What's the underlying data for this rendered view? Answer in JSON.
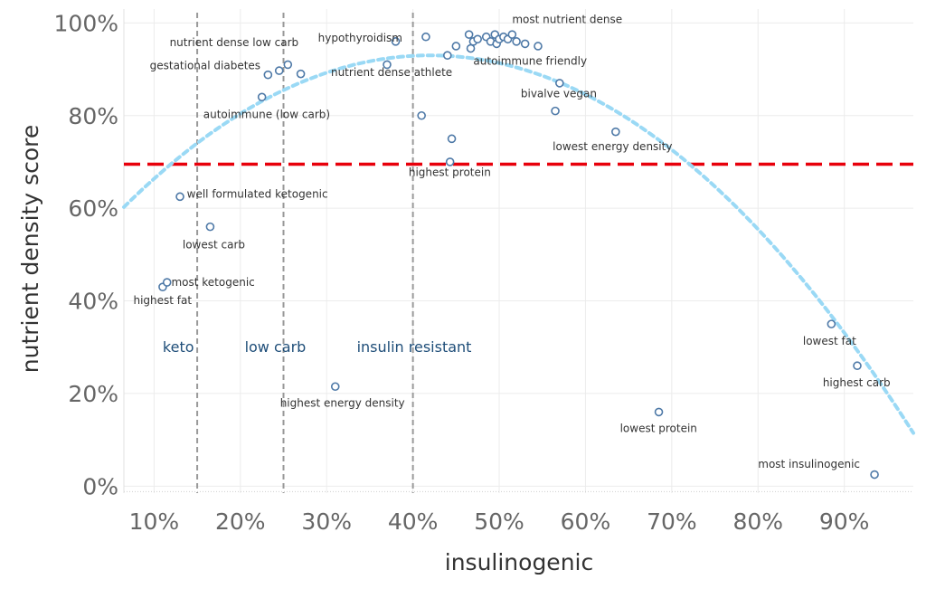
{
  "chart_data": {
    "type": "scatter",
    "xlabel": "insulinogenic",
    "ylabel": "nutrient density score",
    "xlim": [
      0.065,
      0.98
    ],
    "ylim": [
      -0.015,
      1.03
    ],
    "x_ticks": [
      {
        "value": 0.1,
        "label": "10%"
      },
      {
        "value": 0.2,
        "label": "20%"
      },
      {
        "value": 0.3,
        "label": "30%"
      },
      {
        "value": 0.4,
        "label": "40%"
      },
      {
        "value": 0.5,
        "label": "50%"
      },
      {
        "value": 0.6,
        "label": "60%"
      },
      {
        "value": 0.7,
        "label": "70%"
      },
      {
        "value": 0.8,
        "label": "80%"
      },
      {
        "value": 0.9,
        "label": "90%"
      }
    ],
    "y_ticks": [
      {
        "value": 0.0,
        "label": "0%"
      },
      {
        "value": 0.2,
        "label": "20%"
      },
      {
        "value": 0.4,
        "label": "40%"
      },
      {
        "value": 0.6,
        "label": "60%"
      },
      {
        "value": 0.8,
        "label": "80%"
      },
      {
        "value": 1.0,
        "label": "100%"
      }
    ],
    "threshold_line": {
      "y": 0.695,
      "color": "#e8000b"
    },
    "zone_lines": [
      0.15,
      0.25,
      0.4
    ],
    "zones": [
      {
        "label": "keto",
        "x": 0.11,
        "y": 0.29
      },
      {
        "label": "low carb",
        "x": 0.205,
        "y": 0.29
      },
      {
        "label": "insulin resistant",
        "x": 0.335,
        "y": 0.29
      }
    ],
    "trend": {
      "type": "quadratic",
      "peak_x": 0.42,
      "peak_y": 0.93,
      "a": -2.6,
      "color": "#9ad9f5"
    },
    "point_color": "#4e79a7",
    "points": [
      {
        "x": 0.11,
        "y": 0.43
      },
      {
        "x": 0.115,
        "y": 0.44
      },
      {
        "x": 0.13,
        "y": 0.625
      },
      {
        "x": 0.165,
        "y": 0.56
      },
      {
        "x": 0.225,
        "y": 0.84
      },
      {
        "x": 0.232,
        "y": 0.888
      },
      {
        "x": 0.245,
        "y": 0.897
      },
      {
        "x": 0.255,
        "y": 0.91
      },
      {
        "x": 0.27,
        "y": 0.89
      },
      {
        "x": 0.31,
        "y": 0.215
      },
      {
        "x": 0.37,
        "y": 0.91
      },
      {
        "x": 0.38,
        "y": 0.96
      },
      {
        "x": 0.41,
        "y": 0.8
      },
      {
        "x": 0.415,
        "y": 0.97
      },
      {
        "x": 0.44,
        "y": 0.93
      },
      {
        "x": 0.443,
        "y": 0.7
      },
      {
        "x": 0.445,
        "y": 0.75
      },
      {
        "x": 0.45,
        "y": 0.95
      },
      {
        "x": 0.465,
        "y": 0.975
      },
      {
        "x": 0.467,
        "y": 0.945
      },
      {
        "x": 0.47,
        "y": 0.96
      },
      {
        "x": 0.475,
        "y": 0.965
      },
      {
        "x": 0.485,
        "y": 0.97
      },
      {
        "x": 0.49,
        "y": 0.96
      },
      {
        "x": 0.495,
        "y": 0.975
      },
      {
        "x": 0.497,
        "y": 0.955
      },
      {
        "x": 0.5,
        "y": 0.965
      },
      {
        "x": 0.505,
        "y": 0.97
      },
      {
        "x": 0.51,
        "y": 0.965
      },
      {
        "x": 0.515,
        "y": 0.975
      },
      {
        "x": 0.52,
        "y": 0.96
      },
      {
        "x": 0.53,
        "y": 0.955
      },
      {
        "x": 0.545,
        "y": 0.95
      },
      {
        "x": 0.565,
        "y": 0.81
      },
      {
        "x": 0.57,
        "y": 0.87
      },
      {
        "x": 0.635,
        "y": 0.765
      },
      {
        "x": 0.685,
        "y": 0.16
      },
      {
        "x": 0.885,
        "y": 0.35
      },
      {
        "x": 0.915,
        "y": 0.26
      },
      {
        "x": 0.935,
        "y": 0.025
      }
    ],
    "annotations": [
      {
        "text": "most nutrient dense",
        "x": 0.515,
        "y": 1.0
      },
      {
        "text": "nutrient dense low carb",
        "x": 0.118,
        "y": 0.95
      },
      {
        "text": "hypothyroidism",
        "x": 0.29,
        "y": 0.96
      },
      {
        "text": "gestational diabetes",
        "x": 0.095,
        "y": 0.9
      },
      {
        "text": "nutrient dense athlete",
        "x": 0.305,
        "y": 0.885
      },
      {
        "text": "autoimmune friendly",
        "x": 0.47,
        "y": 0.91
      },
      {
        "text": "bivalve vegan",
        "x": 0.525,
        "y": 0.84
      },
      {
        "text": "autoimmune (low carb)",
        "x": 0.157,
        "y": 0.795
      },
      {
        "text": "lowest energy density",
        "x": 0.562,
        "y": 0.725
      },
      {
        "text": "highest protein",
        "x": 0.395,
        "y": 0.67
      },
      {
        "text": "well formulated ketogenic",
        "x": 0.138,
        "y": 0.623
      },
      {
        "text": "lowest carb",
        "x": 0.133,
        "y": 0.513
      },
      {
        "text": "most ketogenic",
        "x": 0.12,
        "y": 0.432
      },
      {
        "text": "highest fat",
        "x": 0.076,
        "y": 0.393
      },
      {
        "text": "highest energy density",
        "x": 0.246,
        "y": 0.172
      },
      {
        "text": "lowest fat",
        "x": 0.852,
        "y": 0.305
      },
      {
        "text": "highest carb",
        "x": 0.875,
        "y": 0.215
      },
      {
        "text": "lowest protein",
        "x": 0.64,
        "y": 0.117
      },
      {
        "text": "most insulinogenic",
        "x": 0.8,
        "y": 0.04
      }
    ]
  }
}
